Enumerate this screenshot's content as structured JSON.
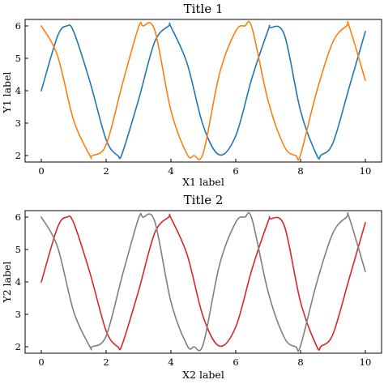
{
  "chart_data": [
    {
      "type": "line",
      "title": "Title 1",
      "xlabel": "X1 label",
      "ylabel": "Y1 label",
      "xlim": [
        -0.5,
        10.5
      ],
      "ylim": [
        1.8,
        6.2
      ],
      "xticks": [
        0,
        2,
        4,
        6,
        8,
        10
      ],
      "yticks": [
        2,
        3,
        4,
        5,
        6
      ],
      "grid": false,
      "series": [
        {
          "color": "#1f77b4",
          "x": [
            0,
            0.5,
            0.79,
            1,
            1.5,
            2,
            2.36,
            2.5,
            3,
            3.5,
            3.93,
            4,
            4.5,
            5,
            5.5,
            6,
            6.5,
            7,
            7.07,
            7.5,
            8,
            8.5,
            8.64,
            9,
            9.5,
            10
          ],
          "y": [
            4.0,
            5.68,
            6.0,
            5.82,
            4.28,
            2.49,
            2.0,
            2.08,
            3.72,
            5.51,
            6.0,
            5.97,
            4.84,
            2.91,
            2.02,
            2.61,
            4.39,
            5.87,
            5.95,
            5.73,
            3.38,
            2.01,
            2.02,
            2.39,
            4.1,
            5.83
          ]
        },
        {
          "color": "#ff7f0e",
          "x": [
            0,
            0.5,
            1,
            1.5,
            1.57,
            2,
            2.5,
            3,
            3.14,
            3.5,
            4,
            4.5,
            4.71,
            5,
            5.5,
            6,
            6.28,
            6.5,
            7,
            7.5,
            7.85,
            8,
            8.5,
            9,
            9.42,
            9.5,
            10
          ],
          "y": [
            6.0,
            5.08,
            3.08,
            2.0,
            2.0,
            2.33,
            4.2,
            5.96,
            6.0,
            5.87,
            3.39,
            2.04,
            2.0,
            2.09,
            4.53,
            5.84,
            6.0,
            5.95,
            3.69,
            2.28,
            2.0,
            2.03,
            3.98,
            5.51,
            6.0,
            5.99,
            4.32
          ]
        }
      ]
    },
    {
      "type": "line",
      "title": "Title 2",
      "xlabel": "X2 label",
      "ylabel": "Y2 label",
      "xlim": [
        -0.5,
        10.5
      ],
      "ylim": [
        1.8,
        6.2
      ],
      "xticks": [
        0,
        2,
        4,
        6,
        8,
        10
      ],
      "yticks": [
        2,
        3,
        4,
        5,
        6
      ],
      "grid": false,
      "series": [
        {
          "color": "#d62728",
          "x": [
            0,
            0.5,
            0.79,
            1,
            1.5,
            2,
            2.36,
            2.5,
            3,
            3.5,
            3.93,
            4,
            4.5,
            5,
            5.5,
            6,
            6.5,
            7,
            7.07,
            7.5,
            8,
            8.5,
            8.64,
            9,
            9.5,
            10
          ],
          "y": [
            4.0,
            5.68,
            6.0,
            5.82,
            4.28,
            2.49,
            2.0,
            2.08,
            3.72,
            5.51,
            6.0,
            5.97,
            4.84,
            2.91,
            2.02,
            2.61,
            4.39,
            5.87,
            5.95,
            5.73,
            3.38,
            2.01,
            2.02,
            2.39,
            4.1,
            5.83
          ]
        },
        {
          "color": "#7f7f7f",
          "x": [
            0,
            0.5,
            1,
            1.5,
            1.57,
            2,
            2.5,
            3,
            3.14,
            3.5,
            4,
            4.5,
            4.71,
            5,
            5.5,
            6,
            6.28,
            6.5,
            7,
            7.5,
            7.85,
            8,
            8.5,
            9,
            9.42,
            9.5,
            10
          ],
          "y": [
            6.0,
            5.08,
            3.08,
            2.0,
            2.0,
            2.33,
            4.2,
            5.96,
            6.0,
            5.87,
            3.39,
            2.04,
            2.0,
            2.09,
            4.53,
            5.84,
            6.0,
            5.95,
            3.69,
            2.28,
            2.0,
            2.03,
            3.98,
            5.51,
            6.0,
            5.99,
            4.32
          ]
        }
      ]
    }
  ]
}
